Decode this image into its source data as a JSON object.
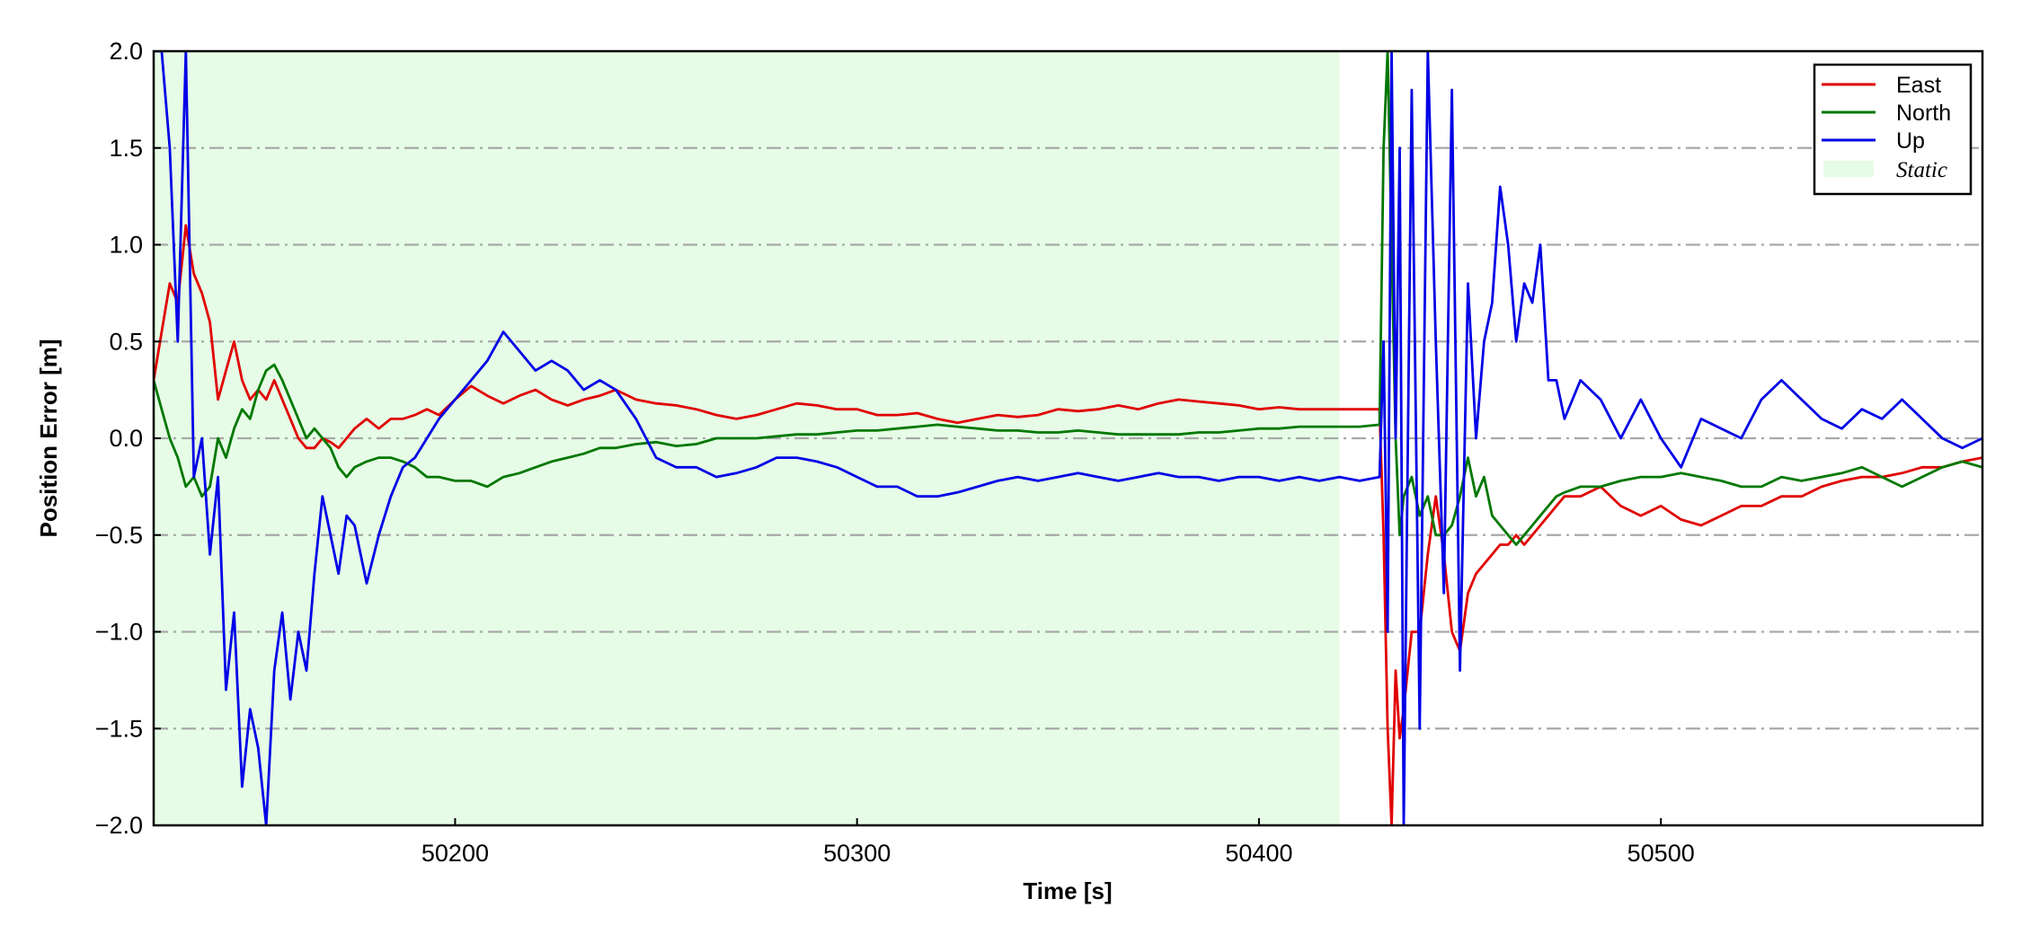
{
  "chart_data": {
    "type": "line",
    "xlabel": "Time [s]",
    "ylabel": "Position Error [m]",
    "xlim": [
      50125,
      50580
    ],
    "ylim": [
      -2.0,
      2.0
    ],
    "xticks": [
      50200,
      50300,
      50400,
      50500
    ],
    "xtick_labels": [
      "50200",
      "50300",
      "50400",
      "50500"
    ],
    "yticks": [
      2.0,
      1.5,
      1.0,
      0.5,
      0.0,
      -0.5,
      -1.0,
      -1.5,
      -2.0
    ],
    "ytick_labels": [
      "2.0",
      "1.5",
      "1.0",
      "0.5",
      "0.0",
      "−0.5",
      "−1.0",
      "−1.5",
      "−2.0"
    ],
    "grid": "horizontal dash-dot",
    "legend_position": "top-right",
    "static_region": {
      "label": "Static",
      "x_start": 50125,
      "x_end": 50420,
      "color": "#e6fce6"
    },
    "series": [
      {
        "name": "East",
        "color": "#e00000",
        "x": [
          50125,
          50127,
          50129,
          50131,
          50133,
          50135,
          50137,
          50139,
          50141,
          50143,
          50145,
          50147,
          50149,
          50151,
          50153,
          50155,
          50157,
          50159,
          50161,
          50163,
          50165,
          50167,
          50169,
          50171,
          50173,
          50175,
          50178,
          50181,
          50184,
          50187,
          50190,
          50193,
          50196,
          50200,
          50204,
          50208,
          50212,
          50216,
          50220,
          50224,
          50228,
          50232,
          50236,
          50240,
          50245,
          50250,
          50255,
          50260,
          50265,
          50270,
          50275,
          50280,
          50285,
          50290,
          50295,
          50300,
          50305,
          50310,
          50315,
          50320,
          50325,
          50330,
          50335,
          50340,
          50345,
          50350,
          50355,
          50360,
          50365,
          50370,
          50375,
          50380,
          50385,
          50390,
          50395,
          50400,
          50405,
          50410,
          50415,
          50420,
          50425,
          50430,
          50431,
          50432,
          50433,
          50434,
          50435,
          50436,
          50438,
          50440,
          50442,
          50444,
          50446,
          50448,
          50450,
          50452,
          50454,
          50456,
          50458,
          50460,
          50462,
          50464,
          50466,
          50468,
          50470,
          50472,
          50474,
          50476,
          50480,
          50485,
          50490,
          50495,
          50500,
          50505,
          50510,
          50515,
          50520,
          50525,
          50530,
          50535,
          50540,
          50545,
          50550,
          50555,
          50560,
          50565,
          50570,
          50575,
          50580
        ],
        "y": [
          0.3,
          0.55,
          0.8,
          0.7,
          1.1,
          0.85,
          0.75,
          0.6,
          0.2,
          0.35,
          0.5,
          0.3,
          0.2,
          0.25,
          0.2,
          0.3,
          0.2,
          0.1,
          0.0,
          -0.05,
          -0.05,
          0.0,
          -0.02,
          -0.05,
          0.0,
          0.05,
          0.1,
          0.05,
          0.1,
          0.1,
          0.12,
          0.15,
          0.12,
          0.2,
          0.27,
          0.22,
          0.18,
          0.22,
          0.25,
          0.2,
          0.17,
          0.2,
          0.22,
          0.25,
          0.2,
          0.18,
          0.17,
          0.15,
          0.12,
          0.1,
          0.12,
          0.15,
          0.18,
          0.17,
          0.15,
          0.15,
          0.12,
          0.12,
          0.13,
          0.1,
          0.08,
          0.1,
          0.12,
          0.11,
          0.12,
          0.15,
          0.14,
          0.15,
          0.17,
          0.15,
          0.18,
          0.2,
          0.19,
          0.18,
          0.17,
          0.15,
          0.16,
          0.15,
          0.15,
          0.15,
          0.15,
          0.15,
          -0.5,
          -1.5,
          -2.0,
          -1.2,
          -1.55,
          -1.4,
          -1.0,
          -1.0,
          -0.6,
          -0.3,
          -0.6,
          -1.0,
          -1.1,
          -0.8,
          -0.7,
          -0.65,
          -0.6,
          -0.55,
          -0.55,
          -0.5,
          -0.55,
          -0.5,
          -0.45,
          -0.4,
          -0.35,
          -0.3,
          -0.3,
          -0.25,
          -0.35,
          -0.4,
          -0.35,
          -0.42,
          -0.45,
          -0.4,
          -0.35,
          -0.35,
          -0.3,
          -0.3,
          -0.25,
          -0.22,
          -0.2,
          -0.2,
          -0.18,
          -0.15,
          -0.15,
          -0.12,
          -0.1
        ]
      },
      {
        "name": "North",
        "color": "#007800",
        "x": [
          50125,
          50127,
          50129,
          50131,
          50133,
          50135,
          50137,
          50139,
          50141,
          50143,
          50145,
          50147,
          50149,
          50151,
          50153,
          50155,
          50157,
          50159,
          50161,
          50163,
          50165,
          50167,
          50169,
          50171,
          50173,
          50175,
          50178,
          50181,
          50184,
          50187,
          50190,
          50193,
          50196,
          50200,
          50204,
          50208,
          50212,
          50216,
          50220,
          50224,
          50228,
          50232,
          50236,
          50240,
          50245,
          50250,
          50255,
          50260,
          50265,
          50270,
          50275,
          50280,
          50285,
          50290,
          50295,
          50300,
          50305,
          50310,
          50315,
          50320,
          50325,
          50330,
          50335,
          50340,
          50345,
          50350,
          50355,
          50360,
          50365,
          50370,
          50375,
          50380,
          50385,
          50390,
          50395,
          50400,
          50405,
          50410,
          50415,
          50420,
          50425,
          50430,
          50431,
          50432,
          50433,
          50434,
          50435,
          50436,
          50438,
          50440,
          50442,
          50444,
          50446,
          50448,
          50450,
          50452,
          50454,
          50456,
          50458,
          50460,
          50462,
          50464,
          50466,
          50468,
          50470,
          50472,
          50474,
          50476,
          50480,
          50485,
          50490,
          50495,
          50500,
          50505,
          50510,
          50515,
          50520,
          50525,
          50530,
          50535,
          50540,
          50545,
          50550,
          50555,
          50560,
          50565,
          50570,
          50575,
          50580
        ],
        "y": [
          0.3,
          0.15,
          0.0,
          -0.1,
          -0.25,
          -0.2,
          -0.3,
          -0.25,
          0.0,
          -0.1,
          0.05,
          0.15,
          0.1,
          0.25,
          0.35,
          0.38,
          0.3,
          0.2,
          0.1,
          0.0,
          0.05,
          0.0,
          -0.05,
          -0.15,
          -0.2,
          -0.15,
          -0.12,
          -0.1,
          -0.1,
          -0.12,
          -0.15,
          -0.2,
          -0.2,
          -0.22,
          -0.22,
          -0.25,
          -0.2,
          -0.18,
          -0.15,
          -0.12,
          -0.1,
          -0.08,
          -0.05,
          -0.05,
          -0.03,
          -0.02,
          -0.04,
          -0.03,
          0.0,
          0.0,
          0.0,
          0.01,
          0.02,
          0.02,
          0.03,
          0.04,
          0.04,
          0.05,
          0.06,
          0.07,
          0.06,
          0.05,
          0.04,
          0.04,
          0.03,
          0.03,
          0.04,
          0.03,
          0.02,
          0.02,
          0.02,
          0.02,
          0.03,
          0.03,
          0.04,
          0.05,
          0.05,
          0.06,
          0.06,
          0.06,
          0.06,
          0.07,
          1.5,
          2.0,
          1.0,
          0.0,
          -0.5,
          -0.3,
          -0.2,
          -0.4,
          -0.3,
          -0.5,
          -0.5,
          -0.45,
          -0.3,
          -0.1,
          -0.3,
          -0.2,
          -0.4,
          -0.45,
          -0.5,
          -0.55,
          -0.5,
          -0.45,
          -0.4,
          -0.35,
          -0.3,
          -0.28,
          -0.25,
          -0.25,
          -0.22,
          -0.2,
          -0.2,
          -0.18,
          -0.2,
          -0.22,
          -0.25,
          -0.25,
          -0.2,
          -0.22,
          -0.2,
          -0.18,
          -0.15,
          -0.2,
          -0.25,
          -0.2,
          -0.15,
          -0.12,
          -0.15
        ]
      },
      {
        "name": "Up",
        "color": "#0000e6",
        "x": [
          50125,
          50127,
          50129,
          50131,
          50133,
          50135,
          50137,
          50139,
          50141,
          50143,
          50145,
          50147,
          50149,
          50151,
          50153,
          50155,
          50157,
          50159,
          50161,
          50163,
          50165,
          50167,
          50169,
          50171,
          50173,
          50175,
          50178,
          50181,
          50184,
          50187,
          50190,
          50193,
          50196,
          50200,
          50204,
          50208,
          50212,
          50216,
          50220,
          50224,
          50228,
          50232,
          50236,
          50240,
          50245,
          50250,
          50255,
          50260,
          50265,
          50270,
          50275,
          50280,
          50285,
          50290,
          50295,
          50300,
          50305,
          50310,
          50315,
          50320,
          50325,
          50330,
          50335,
          50340,
          50345,
          50350,
          50355,
          50360,
          50365,
          50370,
          50375,
          50380,
          50385,
          50390,
          50395,
          50400,
          50405,
          50410,
          50415,
          50420,
          50425,
          50430,
          50431,
          50432,
          50433,
          50434,
          50435,
          50436,
          50438,
          50440,
          50442,
          50444,
          50446,
          50448,
          50450,
          50452,
          50454,
          50456,
          50458,
          50460,
          50462,
          50464,
          50466,
          50468,
          50470,
          50472,
          50474,
          50476,
          50480,
          50485,
          50490,
          50495,
          50500,
          50505,
          50510,
          50515,
          50520,
          50525,
          50530,
          50535,
          50540,
          50545,
          50550,
          50555,
          50560,
          50565,
          50570,
          50575,
          50580
        ],
        "y": [
          2.0,
          2.0,
          1.5,
          0.5,
          2.0,
          -0.2,
          0.0,
          -0.6,
          -0.2,
          -1.3,
          -0.9,
          -1.8,
          -1.4,
          -1.6,
          -2.0,
          -1.2,
          -0.9,
          -1.35,
          -1.0,
          -1.2,
          -0.7,
          -0.3,
          -0.5,
          -0.7,
          -0.4,
          -0.45,
          -0.75,
          -0.5,
          -0.3,
          -0.15,
          -0.1,
          0.0,
          0.1,
          0.2,
          0.3,
          0.4,
          0.55,
          0.45,
          0.35,
          0.4,
          0.35,
          0.25,
          0.3,
          0.25,
          0.1,
          -0.1,
          -0.15,
          -0.15,
          -0.2,
          -0.18,
          -0.15,
          -0.1,
          -0.1,
          -0.12,
          -0.15,
          -0.2,
          -0.25,
          -0.25,
          -0.3,
          -0.3,
          -0.28,
          -0.25,
          -0.22,
          -0.2,
          -0.22,
          -0.2,
          -0.18,
          -0.2,
          -0.22,
          -0.2,
          -0.18,
          -0.2,
          -0.2,
          -0.22,
          -0.2,
          -0.2,
          -0.22,
          -0.2,
          -0.22,
          -0.2,
          -0.22,
          -0.2,
          0.5,
          -1.0,
          2.0,
          0.0,
          1.5,
          -2.0,
          1.8,
          -1.5,
          2.0,
          0.5,
          -0.8,
          1.8,
          -1.2,
          0.8,
          0.0,
          0.5,
          0.7,
          1.3,
          1.0,
          0.5,
          0.8,
          0.7,
          1.0,
          0.3,
          0.3,
          0.1,
          0.3,
          0.2,
          0.0,
          0.2,
          0.0,
          -0.15,
          0.1,
          0.05,
          0.0,
          0.2,
          0.3,
          0.2,
          0.1,
          0.05,
          0.15,
          0.1,
          0.2,
          0.1,
          0.0,
          -0.05,
          0.0
        ]
      }
    ]
  }
}
